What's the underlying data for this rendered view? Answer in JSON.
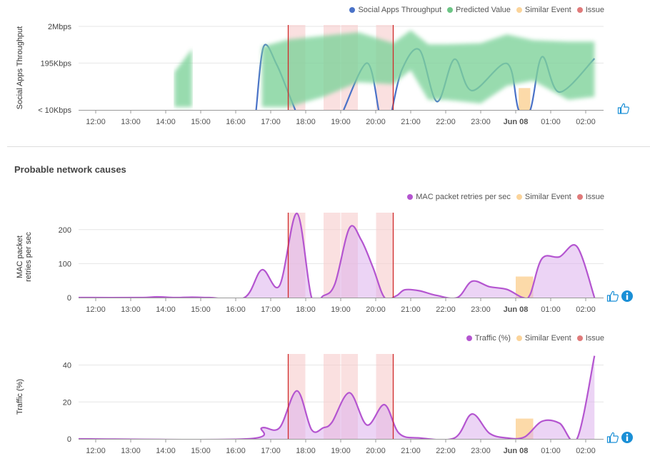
{
  "colors": {
    "throughput": "#4a72c8",
    "predicted": "#7fd39b",
    "similar_event": "#fbd49a",
    "issue": "#e07a7a",
    "issue_line": "#d02a2a",
    "issue_region": "#f6cccc",
    "mac": "#b455d0",
    "traffic": "#b455d0",
    "icon_blue": "#1a8fd6"
  },
  "section_title": "Probable network causes",
  "charts": [
    {
      "id": "throughput",
      "legend": [
        {
          "label": "Social Apps Throughput",
          "color": "#4a72c8"
        },
        {
          "label": "Predicted Value",
          "color": "#6cc585"
        },
        {
          "label": "Similar Event",
          "color": "#fbd49a"
        },
        {
          "label": "Issue",
          "color": "#e07a7a"
        }
      ],
      "ylabel": "Social Apps Throughput",
      "icons": [
        "thumbs-up-icon"
      ],
      "chart_data": {
        "type": "line",
        "yscale": "log",
        "ylim": [
          10,
          2000
        ],
        "yunit": "Kbps",
        "yticks": [
          {
            "value": 10,
            "label": "< 10Kbps"
          },
          {
            "value": 195,
            "label": "195Kbps"
          },
          {
            "value": 2000,
            "label": "2Mbps"
          }
        ],
        "xticks": [
          "12:00",
          "13:00",
          "14:00",
          "15:00",
          "16:00",
          "17:00",
          "18:00",
          "19:00",
          "20:00",
          "21:00",
          "22:00",
          "23:00",
          "Jun 08",
          "01:00",
          "02:00"
        ],
        "xrange": [
          "11:30",
          "02:30"
        ],
        "grid": true,
        "legend_position": "top-right",
        "series": [
          {
            "name": "Social Apps Throughput",
            "type": "line",
            "points": [
              [
                "16:35",
                10
              ],
              [
                "16:48",
                560
              ],
              [
                "17:10",
                180
              ],
              [
                "17:30",
                30
              ],
              [
                "17:42",
                10
              ],
              null,
              [
                "19:05",
                10
              ],
              [
                "19:45",
                195
              ],
              [
                "20:05",
                10
              ],
              null,
              [
                "20:28",
                10
              ],
              [
                "20:45",
                130
              ],
              [
                "21:15",
                450
              ],
              [
                "21:45",
                17
              ],
              [
                "22:15",
                250
              ],
              [
                "22:45",
                34
              ],
              [
                "23:45",
                190
              ],
              [
                "00:05",
                10
              ],
              [
                "00:25",
                10
              ],
              [
                "00:45",
                290
              ],
              [
                "01:15",
                31
              ],
              [
                "02:15",
                260
              ]
            ]
          },
          {
            "name": "Predicted Value",
            "type": "band",
            "segments": [
              [
                [
                  "14:15",
                  12,
                  110
                ],
                [
                  "14:45",
                  12,
                  480
                ]
              ],
              [
                [
                  "16:45",
                  12,
                  556
                ],
                [
                  "17:30",
                  12,
                  870
                ],
                [
                  "18:30",
                  23,
                  1100
                ],
                [
                  "19:30",
                  58,
                  1380
                ],
                [
                  "20:30",
                  51,
                  690
                ],
                [
                  "21:00",
                  125,
                  1570
                ],
                [
                  "21:30",
                  19,
                  640
                ],
                [
                  "22:00",
                  19,
                  640
                ],
                [
                  "23:00",
                  15,
                  690
                ],
                [
                  "23:45",
                  46,
                  1200
                ],
                [
                  "00:30",
                  64,
                  830
                ],
                [
                  "01:30",
                  19,
                  760
                ],
                [
                  "02:15",
                  23,
                  760
                ]
              ]
            ]
          }
        ],
        "issue_regions": [
          [
            "17:30",
            "18:00"
          ],
          [
            "18:30",
            "19:00"
          ],
          [
            "19:00",
            "19:30"
          ],
          [
            "20:00",
            "20:30"
          ]
        ],
        "issue_lines": [
          "17:30",
          "20:30"
        ],
        "similar_events": [
          {
            "from": "00:05",
            "to": "00:25",
            "value": 40
          }
        ]
      }
    },
    {
      "id": "mac-retries",
      "legend": [
        {
          "label": "MAC packet retries per sec",
          "color": "#b455d0"
        },
        {
          "label": "Similar Event",
          "color": "#fbd49a"
        },
        {
          "label": "Issue",
          "color": "#e07a7a"
        }
      ],
      "ylabel": [
        "MAC packet",
        "retries per sec"
      ],
      "icons": [
        "thumbs-up-icon",
        "info-icon"
      ],
      "chart_data": {
        "type": "area",
        "ylim": [
          0,
          250
        ],
        "yticks": [
          {
            "value": 0,
            "label": "0"
          },
          {
            "value": 100,
            "label": "100"
          },
          {
            "value": 200,
            "label": "200"
          }
        ],
        "xticks": [
          "12:00",
          "13:00",
          "14:00",
          "15:00",
          "16:00",
          "17:00",
          "18:00",
          "19:00",
          "20:00",
          "21:00",
          "22:00",
          "23:00",
          "Jun 08",
          "01:00",
          "02:00"
        ],
        "xrange": [
          "11:30",
          "02:30"
        ],
        "grid": true,
        "legend_position": "top-right",
        "series": [
          {
            "name": "MAC packet retries per sec",
            "type": "area",
            "points": [
              [
                "11:30",
                0
              ],
              [
                "13:15",
                0
              ],
              [
                "13:45",
                2
              ],
              [
                "14:15",
                0
              ],
              [
                "14:45",
                1
              ],
              [
                "15:15",
                0
              ],
              [
                "16:15",
                0
              ],
              [
                "16:45",
                82
              ],
              [
                "17:15",
                35
              ],
              [
                "17:45",
                248
              ],
              [
                "18:10",
                0
              ],
              [
                "18:30",
                5
              ],
              [
                "18:50",
                40
              ],
              [
                "19:15",
                205
              ],
              [
                "19:35",
                170
              ],
              [
                "19:55",
                90
              ],
              [
                "20:15",
                0
              ],
              [
                "20:35",
                5
              ],
              [
                "20:50",
                23
              ],
              [
                "21:15",
                20
              ],
              [
                "21:45",
                6
              ],
              [
                "22:20",
                0
              ],
              [
                "22:45",
                48
              ],
              [
                "23:15",
                32
              ],
              [
                "23:45",
                24
              ],
              [
                "00:12",
                0
              ],
              [
                "00:25",
                10
              ],
              [
                "00:45",
                115
              ],
              [
                "01:15",
                120
              ],
              [
                "01:45",
                150
              ],
              [
                "02:15",
                0
              ]
            ]
          }
        ],
        "issue_regions": [
          [
            "17:30",
            "18:00"
          ],
          [
            "18:30",
            "19:00"
          ],
          [
            "19:00",
            "19:30"
          ],
          [
            "20:00",
            "20:30"
          ]
        ],
        "issue_lines": [
          "17:30",
          "20:30"
        ],
        "similar_events": [
          {
            "from": "00:00",
            "to": "00:30",
            "value": 62
          }
        ]
      }
    },
    {
      "id": "traffic",
      "legend": [
        {
          "label": "Traffic (%)",
          "color": "#b455d0"
        },
        {
          "label": "Similar Event",
          "color": "#fbd49a"
        },
        {
          "label": "Issue",
          "color": "#e07a7a"
        }
      ],
      "ylabel": "Traffic (%)",
      "icons": [
        "thumbs-up-icon",
        "info-icon"
      ],
      "chart_data": {
        "type": "area",
        "ylim": [
          0,
          46
        ],
        "yticks": [
          {
            "value": 0,
            "label": "0"
          },
          {
            "value": 20,
            "label": "20"
          },
          {
            "value": 40,
            "label": "40"
          }
        ],
        "xticks": [
          "12:00",
          "13:00",
          "14:00",
          "15:00",
          "16:00",
          "17:00",
          "18:00",
          "19:00",
          "20:00",
          "21:00",
          "22:00",
          "23:00",
          "Jun 08",
          "01:00",
          "02:00"
        ],
        "xrange": [
          "11:30",
          "02:30"
        ],
        "grid": true,
        "legend_position": "top-right",
        "series": [
          {
            "name": "Traffic (%)",
            "type": "area",
            "points": [
              [
                "11:30",
                0
              ],
              [
                "16:20",
                0
              ],
              [
                "16:45",
                6
              ],
              [
                "17:15",
                6
              ],
              [
                "17:45",
                26
              ],
              [
                "18:10",
                5
              ],
              [
                "18:30",
                6
              ],
              [
                "18:45",
                9
              ],
              [
                "19:15",
                25
              ],
              [
                "19:45",
                7.5
              ],
              [
                "20:15",
                18.5
              ],
              [
                "20:40",
                3
              ],
              [
                "21:15",
                0.5
              ],
              [
                "22:15",
                0.5
              ],
              [
                "22:45",
                13.5
              ],
              [
                "23:15",
                3
              ],
              [
                "23:45",
                0.5
              ],
              [
                "00:15",
                1
              ],
              [
                "00:45",
                9.5
              ],
              [
                "01:15",
                8.5
              ],
              [
                "01:45",
                0
              ],
              [
                "02:15",
                45
              ]
            ]
          }
        ],
        "issue_regions": [
          [
            "17:30",
            "18:00"
          ],
          [
            "18:30",
            "19:00"
          ],
          [
            "19:00",
            "19:30"
          ],
          [
            "20:00",
            "20:30"
          ]
        ],
        "issue_lines": [
          "17:30",
          "20:30"
        ],
        "similar_events": [
          {
            "from": "00:00",
            "to": "00:30",
            "value": 11
          }
        ]
      }
    }
  ]
}
